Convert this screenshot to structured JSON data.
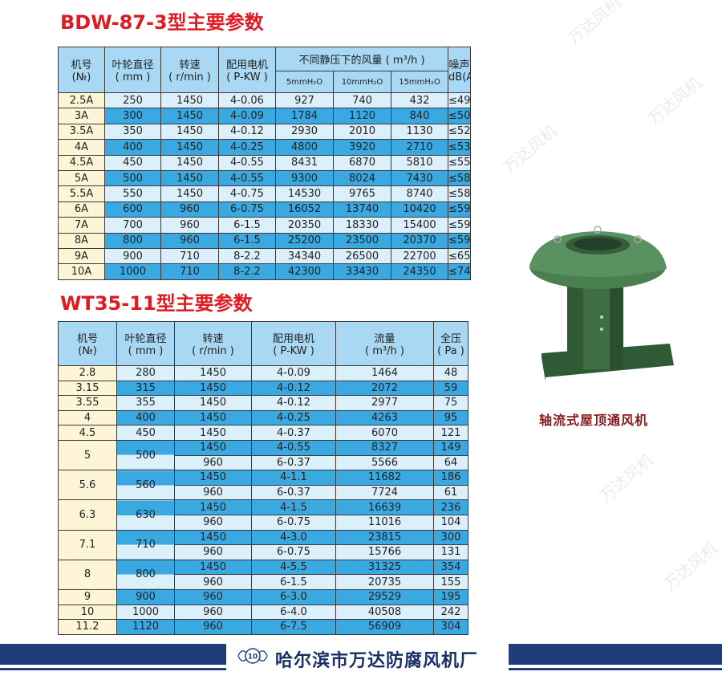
{
  "table1": {
    "title": "BDW-87-3型主要参数",
    "headers": {
      "no": "机号",
      "no_unit": "(№)",
      "dia": "叶轮直径",
      "dia_unit": "( mm )",
      "speed": "转速",
      "speed_unit": "( r/min )",
      "motor": "配用电机",
      "motor_unit": "( P-KW )",
      "flow": "不同静压下的风量 ( m³/h )",
      "p5": "5mmH₂O",
      "p10": "10mmH₂O",
      "p15": "15mmH₂O",
      "noise": "噪声",
      "noise_unit": "dB(A)"
    },
    "rows": [
      [
        "2.5A",
        "250",
        "1450",
        "4-0.06",
        "927",
        "740",
        "432",
        "≤49"
      ],
      [
        "3A",
        "300",
        "1450",
        "4-0.09",
        "1784",
        "1120",
        "840",
        "≤50"
      ],
      [
        "3.5A",
        "350",
        "1450",
        "4-0.12",
        "2930",
        "2010",
        "1130",
        "≤52"
      ],
      [
        "4A",
        "400",
        "1450",
        "4-0.25",
        "4800",
        "3920",
        "2710",
        "≤53"
      ],
      [
        "4.5A",
        "450",
        "1450",
        "4-0.55",
        "8431",
        "6870",
        "5810",
        "≤55"
      ],
      [
        "5A",
        "500",
        "1450",
        "4-0.55",
        "9300",
        "8024",
        "7430",
        "≤58"
      ],
      [
        "5.5A",
        "550",
        "1450",
        "4-0.75",
        "14530",
        "9765",
        "8740",
        "≤58"
      ],
      [
        "6A",
        "600",
        "960",
        "6-0.75",
        "16052",
        "13740",
        "10420",
        "≤59"
      ],
      [
        "7A",
        "700",
        "960",
        "6-1.5",
        "20350",
        "18330",
        "15400",
        "≤59"
      ],
      [
        "8A",
        "800",
        "960",
        "6-1.5",
        "25200",
        "23500",
        "20370",
        "≤59"
      ],
      [
        "9A",
        "900",
        "710",
        "8-2.2",
        "34340",
        "26500",
        "22700",
        "≤65"
      ],
      [
        "10A",
        "1000",
        "710",
        "8-2.2",
        "42300",
        "33430",
        "24350",
        "≤74"
      ]
    ]
  },
  "table2": {
    "title": "WT35-11型主要参数",
    "headers": {
      "no": "机号",
      "no_unit": "(№)",
      "dia": "叶轮直径",
      "dia_unit": "( mm )",
      "speed": "转速",
      "speed_unit": "( r/min )",
      "motor": "配用电机",
      "motor_unit": "( P-KW )",
      "flow": "流量",
      "flow_unit": "( m³/h )",
      "pressure": "全压",
      "pressure_unit": "( Pa )"
    },
    "groups": [
      {
        "no": "2.8",
        "dia": "280",
        "rows": [
          [
            "1450",
            "4-0.09",
            "1464",
            "48"
          ]
        ]
      },
      {
        "no": "3.15",
        "dia": "315",
        "rows": [
          [
            "1450",
            "4-0.12",
            "2072",
            "59"
          ]
        ]
      },
      {
        "no": "3.55",
        "dia": "355",
        "rows": [
          [
            "1450",
            "4-0.12",
            "2977",
            "75"
          ]
        ]
      },
      {
        "no": "4",
        "dia": "400",
        "rows": [
          [
            "1450",
            "4-0.25",
            "4263",
            "95"
          ]
        ]
      },
      {
        "no": "4.5",
        "dia": "450",
        "rows": [
          [
            "1450",
            "4-0.37",
            "6070",
            "121"
          ]
        ]
      },
      {
        "no": "5",
        "dia": "500",
        "rows": [
          [
            "1450",
            "4-0.55",
            "8327",
            "149"
          ],
          [
            "960",
            "6-0.37",
            "5566",
            "64"
          ]
        ]
      },
      {
        "no": "5.6",
        "dia": "560",
        "rows": [
          [
            "1450",
            "4-1.1",
            "11682",
            "186"
          ],
          [
            "960",
            "6-0.37",
            "7724",
            "61"
          ]
        ]
      },
      {
        "no": "6.3",
        "dia": "630",
        "rows": [
          [
            "1450",
            "4-1.5",
            "16639",
            "236"
          ],
          [
            "960",
            "6-0.75",
            "11016",
            "104"
          ]
        ]
      },
      {
        "no": "7.1",
        "dia": "710",
        "rows": [
          [
            "1450",
            "4-3.0",
            "23815",
            "300"
          ],
          [
            "960",
            "6-0.75",
            "15766",
            "131"
          ]
        ]
      },
      {
        "no": "8",
        "dia": "800",
        "rows": [
          [
            "1450",
            "4-5.5",
            "31325",
            "354"
          ],
          [
            "960",
            "6-1.5",
            "20735",
            "155"
          ]
        ]
      },
      {
        "no": "9",
        "dia": "900",
        "rows": [
          [
            "960",
            "6-3.0",
            "29529",
            "195"
          ]
        ]
      },
      {
        "no": "10",
        "dia": "1000",
        "rows": [
          [
            "960",
            "6-4.0",
            "40508",
            "242"
          ]
        ]
      },
      {
        "no": "11.2",
        "dia": "1120",
        "rows": [
          [
            "960",
            "6-7.5",
            "56909",
            "304"
          ]
        ]
      }
    ]
  },
  "product": {
    "caption": "轴流式屋顶通风机",
    "image": "green-roof-ventilator-photo"
  },
  "footer": {
    "page_number": "10",
    "company": "哈尔滨市万达防腐风机厂"
  },
  "watermark": "万达风机",
  "colors": {
    "title": "#e01a22",
    "row_dark": "#3aa9e2",
    "row_light": "#dcf0fb",
    "header": "#a8d8f3",
    "first_col": "#fdf5d6",
    "footer": "#1f3d7a"
  }
}
